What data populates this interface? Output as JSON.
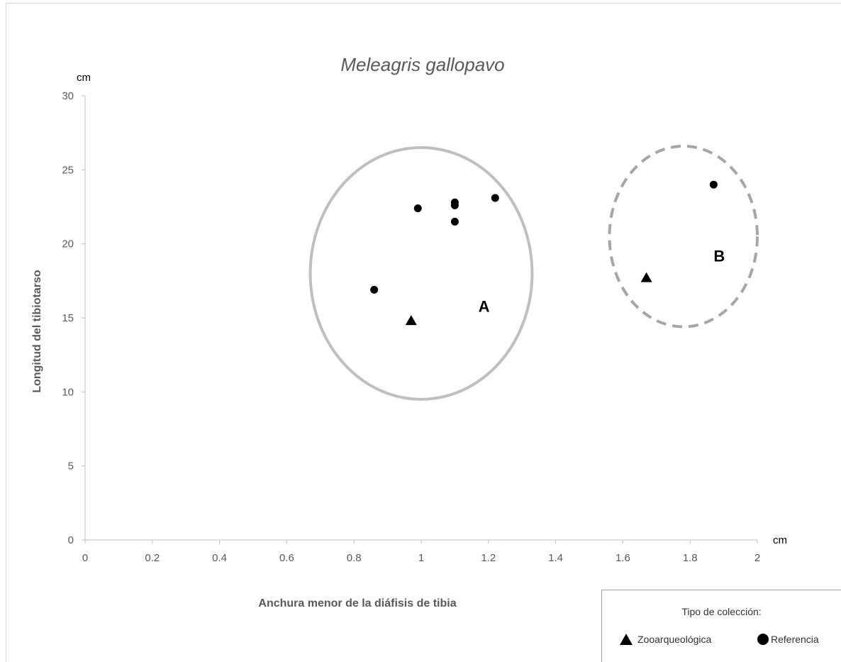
{
  "chart_data": {
    "type": "scatter",
    "title": "Meleagris gallopavo",
    "xlabel": "Anchura menor de la diáfisis de tibia",
    "ylabel": "Longitud del tibiotarso",
    "x_unit": "cm",
    "y_unit": "cm",
    "xlim": [
      0,
      2
    ],
    "ylim": [
      0,
      30
    ],
    "x_ticks": [
      "0",
      "0.2",
      "0.4",
      "0.6",
      "0.8",
      "1",
      "1.2",
      "1.4",
      "1.6",
      "1.8",
      "2"
    ],
    "y_ticks": [
      "0",
      "5",
      "10",
      "15",
      "20",
      "25",
      "30"
    ],
    "grid": false,
    "legend": {
      "title": "Tipo de colección:",
      "placement": "bottom-right",
      "entries": [
        "Zooarqueológica",
        "Referencia"
      ]
    },
    "series": [
      {
        "name": "Zooarqueológica",
        "marker": "triangle",
        "color": "#000000",
        "points": [
          {
            "x": 0.97,
            "y": 14.8
          },
          {
            "x": 1.67,
            "y": 17.7
          }
        ]
      },
      {
        "name": "Referencia",
        "marker": "circle",
        "color": "#000000",
        "points": [
          {
            "x": 0.86,
            "y": 16.9
          },
          {
            "x": 0.99,
            "y": 22.4
          },
          {
            "x": 1.1,
            "y": 22.8
          },
          {
            "x": 1.1,
            "y": 22.6
          },
          {
            "x": 1.1,
            "y": 21.5
          },
          {
            "x": 1.22,
            "y": 23.1
          },
          {
            "x": 1.87,
            "y": 24.0
          }
        ]
      }
    ],
    "annotations": [
      {
        "label": "A",
        "style": "solid",
        "color": "#bfbfbf",
        "cx": 1.0,
        "cy": 18.0,
        "rx": 0.33,
        "ry": 8.5,
        "label_x": 1.17,
        "label_y": 15.4
      },
      {
        "label": "B",
        "style": "dashed",
        "color": "#a6a6a6",
        "cx": 1.78,
        "cy": 20.5,
        "rx": 0.22,
        "ry": 6.1,
        "label_x": 1.87,
        "label_y": 18.8
      }
    ]
  }
}
